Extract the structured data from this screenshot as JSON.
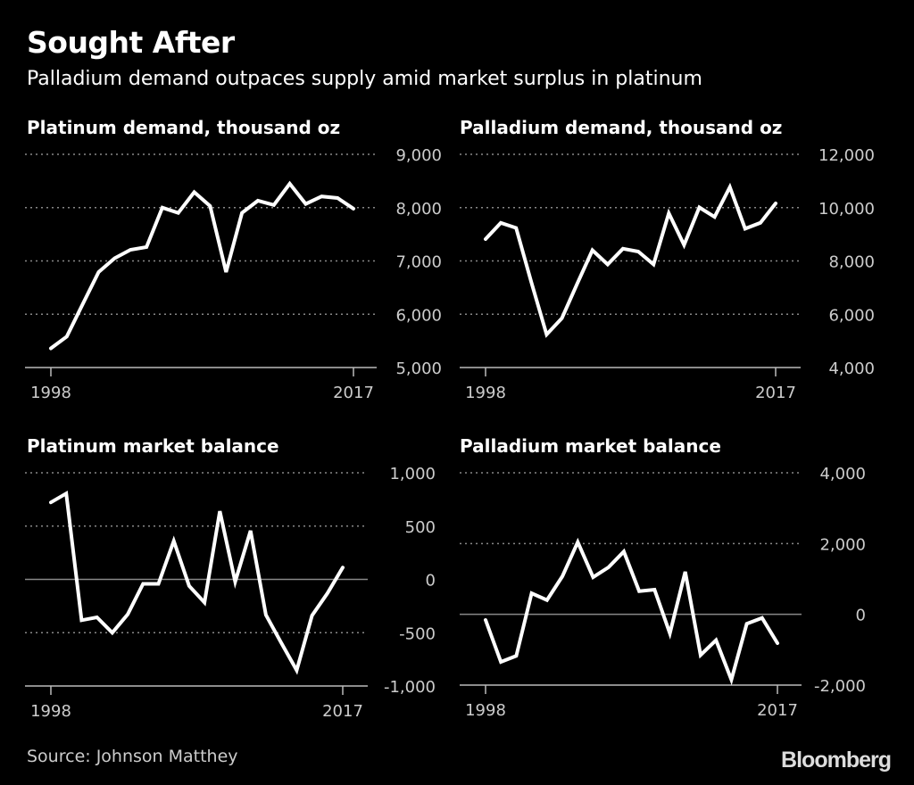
{
  "header": {
    "title": "Sought After",
    "subtitle": "Palladium demand outpaces supply amid market surplus in platinum"
  },
  "footer": {
    "source": "Source: Johnson Matthey",
    "logo": "Bloomberg"
  },
  "colors": {
    "background": "#000000",
    "line": "#ffffff",
    "grid": "#888888",
    "zero_line": "#888888"
  },
  "chart_data": [
    {
      "type": "line",
      "title": "Platinum demand, thousand oz",
      "x": [
        1998,
        1999,
        2000,
        2001,
        2002,
        2003,
        2004,
        2005,
        2006,
        2007,
        2008,
        2009,
        2010,
        2011,
        2012,
        2013,
        2014,
        2015,
        2016,
        2017
      ],
      "values": [
        5360,
        5580,
        6190,
        6790,
        7050,
        7210,
        7260,
        8000,
        7900,
        8290,
        8030,
        6790,
        7900,
        8130,
        8050,
        8450,
        8070,
        8210,
        8180,
        7980
      ],
      "ylim": [
        5000,
        9000
      ],
      "yticks": [
        9000,
        8000,
        7000,
        6000,
        5000
      ],
      "ytick_labels": [
        "9,000",
        "8,000",
        "7,000",
        "6,000",
        "5,000"
      ],
      "xtick_labels": [
        "1998",
        "2017"
      ],
      "grid": true
    },
    {
      "type": "line",
      "title": "Palladium demand, thousand oz",
      "x": [
        1998,
        1999,
        2000,
        2001,
        2002,
        2003,
        2004,
        2005,
        2006,
        2007,
        2008,
        2009,
        2010,
        2011,
        2012,
        2013,
        2014,
        2015,
        2016,
        2017
      ],
      "values": [
        8820,
        9430,
        9240,
        7200,
        5240,
        5850,
        7140,
        8400,
        7870,
        8460,
        8350,
        7870,
        9790,
        8600,
        10010,
        9650,
        10770,
        9210,
        9430,
        10160
      ],
      "ylim": [
        4000,
        12000
      ],
      "yticks": [
        12000,
        10000,
        8000,
        6000,
        4000
      ],
      "ytick_labels": [
        "12,000",
        "10,000",
        "8,000",
        "6,000",
        "4,000"
      ],
      "xtick_labels": [
        "1998",
        "2017"
      ],
      "grid": true
    },
    {
      "type": "line",
      "title": "Platinum market balance",
      "x": [
        1998,
        1999,
        2000,
        2001,
        2002,
        2003,
        2004,
        2005,
        2006,
        2007,
        2008,
        2009,
        2010,
        2011,
        2012,
        2013,
        2014,
        2015,
        2016,
        2017
      ],
      "values": [
        722,
        806,
        -383,
        -356,
        -500,
        -328,
        -42,
        -42,
        361,
        -61,
        -217,
        639,
        -22,
        456,
        -333,
        -597,
        -853,
        -339,
        -131,
        111
      ],
      "ylim": [
        -1000,
        1000
      ],
      "yticks": [
        1000,
        500,
        0,
        -500,
        -1000
      ],
      "ytick_labels": [
        "1,000",
        "500",
        "0",
        "-500",
        "-1,000"
      ],
      "xtick_labels": [
        "1998",
        "2017"
      ],
      "grid": true
    },
    {
      "type": "line",
      "title": "Palladium market balance",
      "x": [
        1998,
        1999,
        2000,
        2001,
        2002,
        2003,
        2004,
        2005,
        2006,
        2007,
        2008,
        2009,
        2010,
        2011,
        2012,
        2013,
        2014,
        2015,
        2016,
        2017
      ],
      "values": [
        -160,
        -1345,
        -1176,
        597,
        403,
        1076,
        2042,
        1050,
        1328,
        1773,
        655,
        697,
        -538,
        1202,
        -1151,
        -731,
        -1849,
        -269,
        -101,
        -815
      ],
      "ylim": [
        -2000,
        4000
      ],
      "yticks": [
        4000,
        2000,
        0,
        -2000
      ],
      "ytick_labels": [
        "4,000",
        "2,000",
        "0",
        "-2,000"
      ],
      "xtick_labels": [
        "1998",
        "2017"
      ],
      "grid": true
    }
  ]
}
